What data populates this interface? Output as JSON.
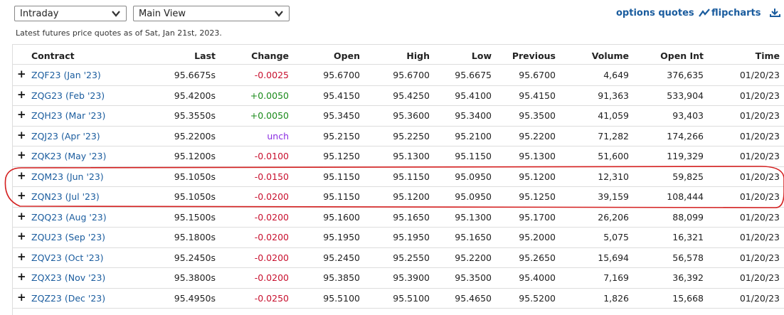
{
  "header": {
    "interval_select": "Intraday",
    "view_select": "Main View",
    "links": [
      "options quotes",
      "flipcharts"
    ],
    "caption": "Latest futures price quotes as of Sat, Jan 21st, 2023."
  },
  "table": {
    "columns": [
      "Contract",
      "Last",
      "Change",
      "Open",
      "High",
      "Low",
      "Previous",
      "Volume",
      "Open Int",
      "Time"
    ],
    "rows": [
      [
        "ZQF23 (Jan '23)",
        "95.6675s",
        "-0.0025",
        "95.6700",
        "95.6700",
        "95.6675",
        "95.6700",
        "4,649",
        "376,635",
        "01/20/23"
      ],
      [
        "ZQG23 (Feb '23)",
        "95.4200s",
        "+0.0050",
        "95.4150",
        "95.4250",
        "95.4100",
        "95.4150",
        "91,363",
        "533,904",
        "01/20/23"
      ],
      [
        "ZQH23 (Mar '23)",
        "95.3550s",
        "+0.0050",
        "95.3450",
        "95.3600",
        "95.3400",
        "95.3500",
        "41,059",
        "93,403",
        "01/20/23"
      ],
      [
        "ZQJ23 (Apr '23)",
        "95.2200s",
        "unch",
        "95.2150",
        "95.2250",
        "95.2100",
        "95.2200",
        "71,282",
        "174,266",
        "01/20/23"
      ],
      [
        "ZQK23 (May '23)",
        "95.1200s",
        "-0.0100",
        "95.1250",
        "95.1300",
        "95.1150",
        "95.1300",
        "51,600",
        "119,329",
        "01/20/23"
      ],
      [
        "ZQM23 (Jun '23)",
        "95.1050s",
        "-0.0150",
        "95.1150",
        "95.1150",
        "95.0950",
        "95.1200",
        "12,310",
        "59,825",
        "01/20/23"
      ],
      [
        "ZQN23 (Jul '23)",
        "95.1050s",
        "-0.0200",
        "95.1150",
        "95.1200",
        "95.0950",
        "95.1250",
        "39,159",
        "108,444",
        "01/20/23"
      ],
      [
        "ZQQ23 (Aug '23)",
        "95.1500s",
        "-0.0200",
        "95.1600",
        "95.1650",
        "95.1300",
        "95.1700",
        "26,206",
        "88,099",
        "01/20/23"
      ],
      [
        "ZQU23 (Sep '23)",
        "95.1800s",
        "-0.0200",
        "95.1950",
        "95.1950",
        "95.1650",
        "95.2000",
        "5,075",
        "16,321",
        "01/20/23"
      ],
      [
        "ZQV23 (Oct '23)",
        "95.2450s",
        "-0.0200",
        "95.2450",
        "95.2550",
        "95.2200",
        "95.2650",
        "15,694",
        "56,578",
        "01/20/23"
      ],
      [
        "ZQX23 (Nov '23)",
        "95.3800s",
        "-0.0200",
        "95.3850",
        "95.3900",
        "95.3500",
        "95.4000",
        "7,169",
        "36,392",
        "01/20/23"
      ],
      [
        "ZQZ23 (Dec '23)",
        "95.4950s",
        "-0.0250",
        "95.5100",
        "95.5100",
        "95.4650",
        "95.5200",
        "1,826",
        "15,668",
        "01/20/23"
      ]
    ]
  }
}
